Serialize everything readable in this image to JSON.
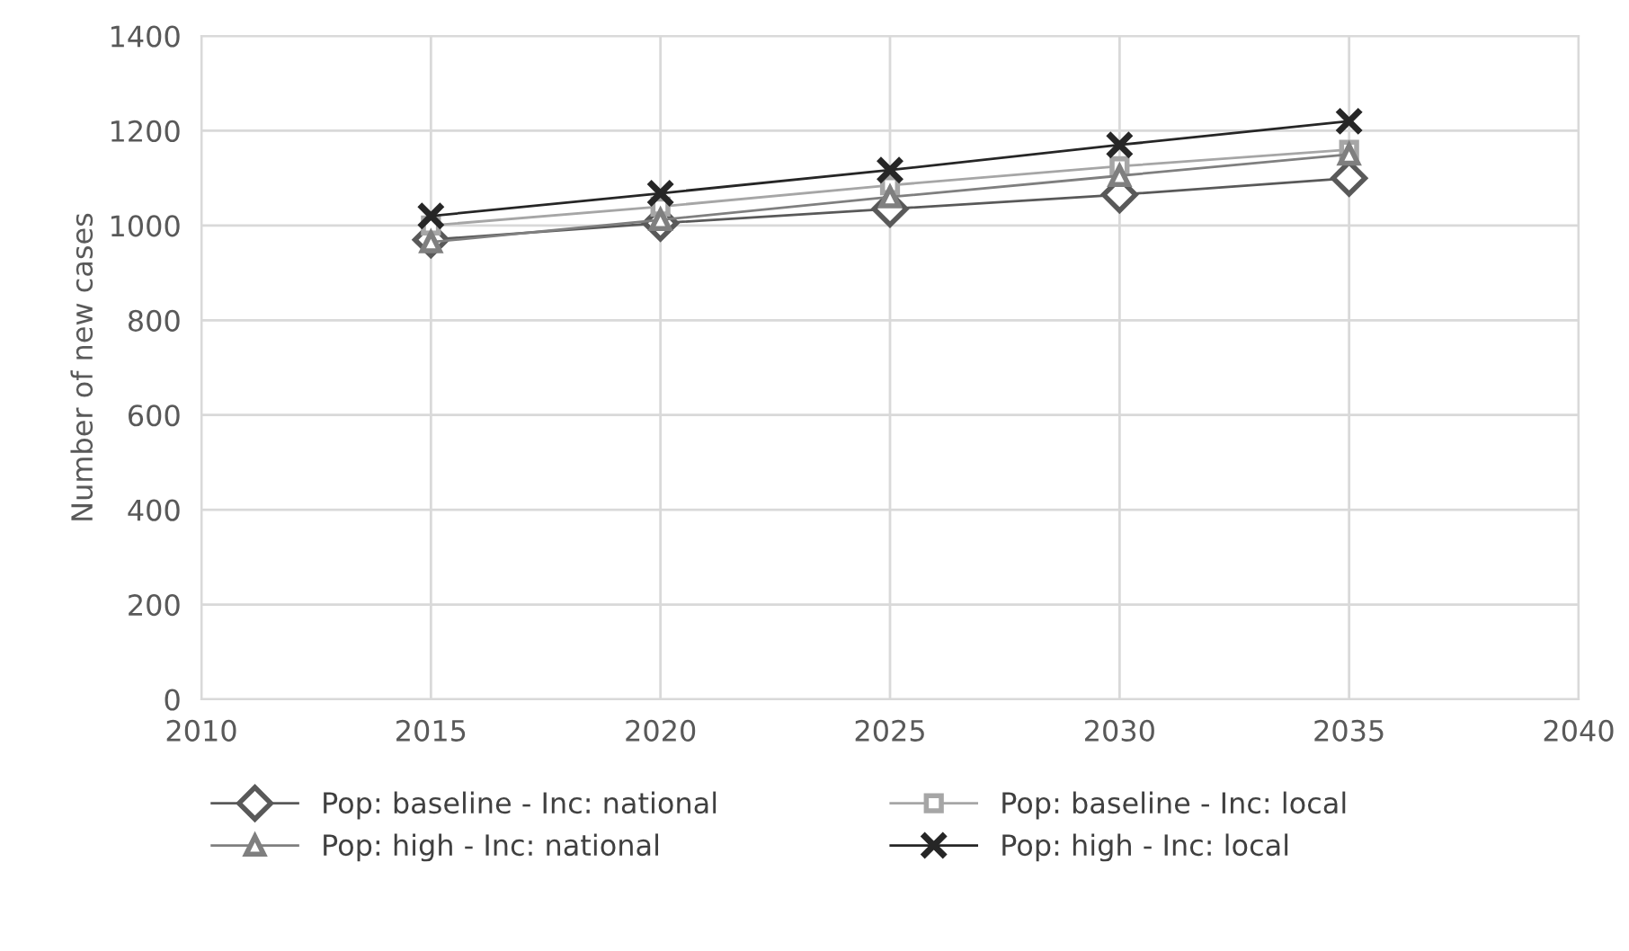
{
  "chart_data": {
    "type": "line",
    "ylabel": "Number of new cases",
    "x": [
      2015,
      2020,
      2025,
      2030,
      2035
    ],
    "series": [
      {
        "name": "Pop: baseline - Inc: national",
        "color": "#595959",
        "marker": "diamond",
        "values": [
          970,
          1005,
          1035,
          1065,
          1100
        ]
      },
      {
        "name": "Pop: baseline - Inc: local",
        "color": "#a6a6a6",
        "marker": "square",
        "values": [
          1000,
          1040,
          1085,
          1125,
          1160
        ]
      },
      {
        "name": "Pop: high - Inc: national",
        "color": "#7f7f7f",
        "marker": "triangle",
        "values": [
          965,
          1012,
          1060,
          1105,
          1150
        ]
      },
      {
        "name": "Pop: high - Inc: local",
        "color": "#262626",
        "marker": "cross",
        "values": [
          1020,
          1068,
          1117,
          1170,
          1220
        ]
      }
    ],
    "xlim": [
      2010,
      2040
    ],
    "xticks": [
      2010,
      2015,
      2020,
      2025,
      2030,
      2035,
      2040
    ],
    "ylim": [
      0,
      1400
    ],
    "yticks": [
      0,
      200,
      400,
      600,
      800,
      1000,
      1200,
      1400
    ],
    "grid": true,
    "legend": "bottom"
  }
}
